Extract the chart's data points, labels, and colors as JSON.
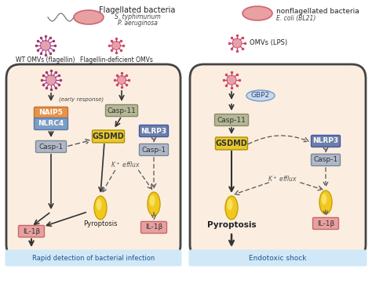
{
  "title_left": "Rapid detection of bacterial infection",
  "title_right": "Endotoxic shock",
  "flagellated_bacteria_label": "Flagellated bacteria",
  "flagellated_species_1": "S. typhimurium",
  "flagellated_species_2": "P. aeruginosa",
  "nonflagellated_bacteria_label": "nonflagellated bacteria",
  "nonflagellated_species": "E. coli (BL21)",
  "omvs_lps_label": "OMVs (LPS)",
  "wt_omvs_label": "WT OMVs (flagellin)",
  "flagellin_deficient_label": "Flagellin-deficient OMVs",
  "cell_bg": "#fbeee0",
  "cell_border": "#444444",
  "naip5_color": "#e8924a",
  "nlrc4_color": "#7b9ec4",
  "casp11_color": "#b5b896",
  "casp11_border": "#888866",
  "gsdmd_color": "#e8c830",
  "gsdmd_border": "#b09000",
  "nlrp3_color": "#6b7fa8",
  "casp1_color": "#b0b8c8",
  "casp1_border": "#778899",
  "gbp2_color": "#c8daf0",
  "gbp2_border": "#7799cc",
  "il1b_color": "#e8a0a0",
  "il1b_border": "#cc6666",
  "bg_color": "#ffffff",
  "arrow_color": "#333333",
  "dashed_color": "#555555",
  "text_dark": "#222222",
  "text_mid": "#444444",
  "bottom_bg": "#d0e8f8"
}
